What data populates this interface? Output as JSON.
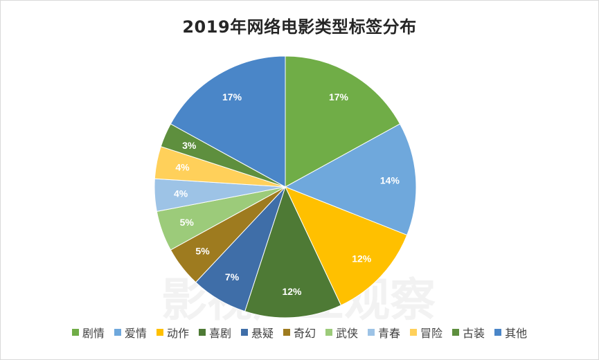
{
  "chart_data": {
    "type": "pie",
    "title": "2019年网络电影类型标签分布",
    "categories": [
      "剧情",
      "爱情",
      "动作",
      "喜剧",
      "悬疑",
      "奇幻",
      "武侠",
      "青春",
      "冒险",
      "古装",
      "其他"
    ],
    "values": [
      17,
      14,
      12,
      12,
      7,
      5,
      5,
      4,
      4,
      3,
      17
    ],
    "value_labels": [
      "17%",
      "14%",
      "12%",
      "12%",
      "7%",
      "5%",
      "5%",
      "4%",
      "4%",
      "3%",
      "17%"
    ],
    "colors": [
      "#70ad47",
      "#6fa8dc",
      "#ffc000",
      "#4e7a35",
      "#3f6ea8",
      "#9e7b1f",
      "#9ccb7a",
      "#9dc3e6",
      "#ffd05a",
      "#5e8f3e",
      "#4a86c8"
    ],
    "start_angle_deg": 0,
    "direction": "clockwise",
    "legend_position": "bottom"
  },
  "watermark": "影视产业观察"
}
